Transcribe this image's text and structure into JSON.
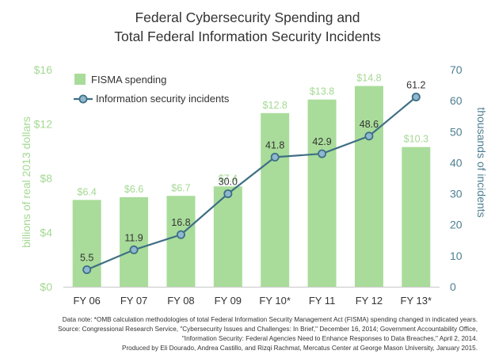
{
  "chart_data": {
    "type": "bar+line",
    "title_line1": "Federal Cybersecurity Spending and",
    "title_line2": "Total Federal Information Security Incidents",
    "categories": [
      "FY 06",
      "FY 07",
      "FY 08",
      "FY 09",
      "FY 10*",
      "FY 11",
      "FY 12",
      "FY 13*"
    ],
    "series": [
      {
        "name": "FISMA spending",
        "type": "bar",
        "axis": "left",
        "values": [
          6.4,
          6.6,
          6.7,
          7.4,
          12.8,
          13.8,
          14.8,
          10.3
        ],
        "labels": [
          "$6.4",
          "$6.6",
          "$6.7",
          "$7.4",
          "$12.8",
          "$13.8",
          "$14.8",
          "$10.3"
        ]
      },
      {
        "name": "Information security incidents",
        "type": "line",
        "axis": "right",
        "values": [
          5.5,
          11.9,
          16.8,
          30.0,
          41.8,
          42.9,
          48.6,
          61.2
        ],
        "labels": [
          "5.5",
          "11.9",
          "16.8",
          "30.0",
          "41.8",
          "42.9",
          "48.6",
          "61.2"
        ]
      }
    ],
    "ylabel_left": "billions of real 2013 dollars",
    "ylim_left": [
      0,
      16
    ],
    "yticks_left": [
      "$0",
      "$4",
      "$8",
      "$12",
      "$16"
    ],
    "ylabel_right": "thousands of incidents",
    "ylim_right": [
      0,
      70
    ],
    "yticks_right": [
      "0",
      "10",
      "20",
      "30",
      "40",
      "50",
      "60",
      "70"
    ],
    "legend_position": "top-left",
    "colors": {
      "bar": "#a9dc9a",
      "bar_label": "#a4d893",
      "line": "#3f6f85",
      "marker_fill": "#8fb8d0",
      "right_axis": "#4e7f91",
      "text": "#333333"
    }
  },
  "notes": {
    "line1": "Data note: *OMB calculation methodologies of total Federal Information Security Management Act (FISMA) spending changed in indicated years.",
    "line2": "Source: Congressional Research Service, \"Cybersecurity Issues and Challenges: In Brief,\" December 16, 2014; Government Accountability Office,",
    "line3": "\"Information Security: Federal Agencies Need to Enhance Responses to Data Breaches,\" April 2, 2014.",
    "line4": "Produced by Eli Dourado, Andrea Castillo, and Rizqi Rachmat, Mercatus Center at George Mason University, January 2015."
  }
}
